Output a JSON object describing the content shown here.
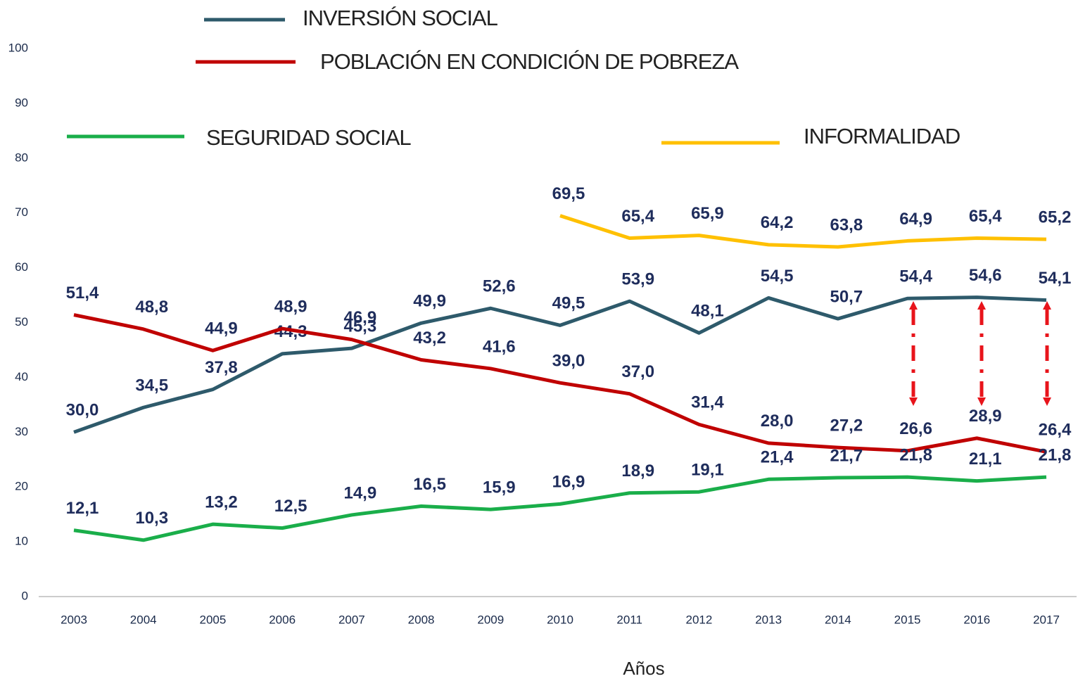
{
  "chart_data": {
    "type": "line",
    "x_label": "Años",
    "categories": [
      "2003",
      "2004",
      "2005",
      "2006",
      "2007",
      "2008",
      "2009",
      "2010",
      "2011",
      "2012",
      "2013",
      "2014",
      "2015",
      "2016",
      "2017"
    ],
    "ylim": [
      0,
      100
    ],
    "yticks": [
      0,
      10,
      20,
      30,
      40,
      50,
      60,
      70,
      80,
      90,
      100
    ],
    "series": [
      {
        "name": "INVERSIÓN SOCIAL",
        "color": "#2e5a6b",
        "values": [
          30.0,
          34.5,
          37.8,
          44.3,
          45.3,
          49.9,
          52.6,
          49.5,
          53.9,
          48.1,
          54.5,
          50.7,
          54.4,
          54.6,
          54.1
        ],
        "value_labels": [
          "30,0",
          "34,5",
          "37,8",
          "44,3",
          "45,3",
          "49,9",
          "52,6",
          "49,5",
          "53,9",
          "48,1",
          "54,5",
          "50,7",
          "54,4",
          "54,6",
          "54,1"
        ]
      },
      {
        "name": "POBLACIÓN EN CONDICIÓN DE POBREZA",
        "color": "#c00000",
        "values": [
          51.4,
          48.8,
          44.9,
          48.9,
          46.9,
          43.2,
          41.6,
          39.0,
          37.0,
          31.4,
          28.0,
          27.2,
          26.6,
          28.9,
          26.4
        ],
        "value_labels": [
          "51,4",
          "48,8",
          "44,9",
          "48,9",
          "46,9",
          "43,2",
          "41,6",
          "39,0",
          "37,0",
          "31,4",
          "28,0",
          "27,2",
          "26,6",
          "28,9",
          "26,4"
        ]
      },
      {
        "name": "SEGURIDAD SOCIAL",
        "color": "#1aae4a",
        "values": [
          12.1,
          10.3,
          13.2,
          12.5,
          14.9,
          16.5,
          15.9,
          16.9,
          18.9,
          19.1,
          21.4,
          21.7,
          21.8,
          21.1,
          21.8
        ],
        "value_labels": [
          "12,1",
          "10,3",
          "13,2",
          "12,5",
          "14,9",
          "16,5",
          "15,9",
          "16,9",
          "18,9",
          "19,1",
          "21,4",
          "21,7",
          "21,8",
          "21,1",
          "21,8"
        ]
      },
      {
        "name": "INFORMALIDAD",
        "color": "#ffc000",
        "values": [
          null,
          null,
          null,
          null,
          null,
          null,
          null,
          69.5,
          65.4,
          65.9,
          64.2,
          63.8,
          64.9,
          65.4,
          65.2
        ],
        "value_labels": [
          null,
          null,
          null,
          null,
          null,
          null,
          null,
          "69,5",
          "65,4",
          "65,9",
          "64,2",
          "63,8",
          "64,9",
          "65,4",
          "65,2"
        ]
      }
    ]
  }
}
